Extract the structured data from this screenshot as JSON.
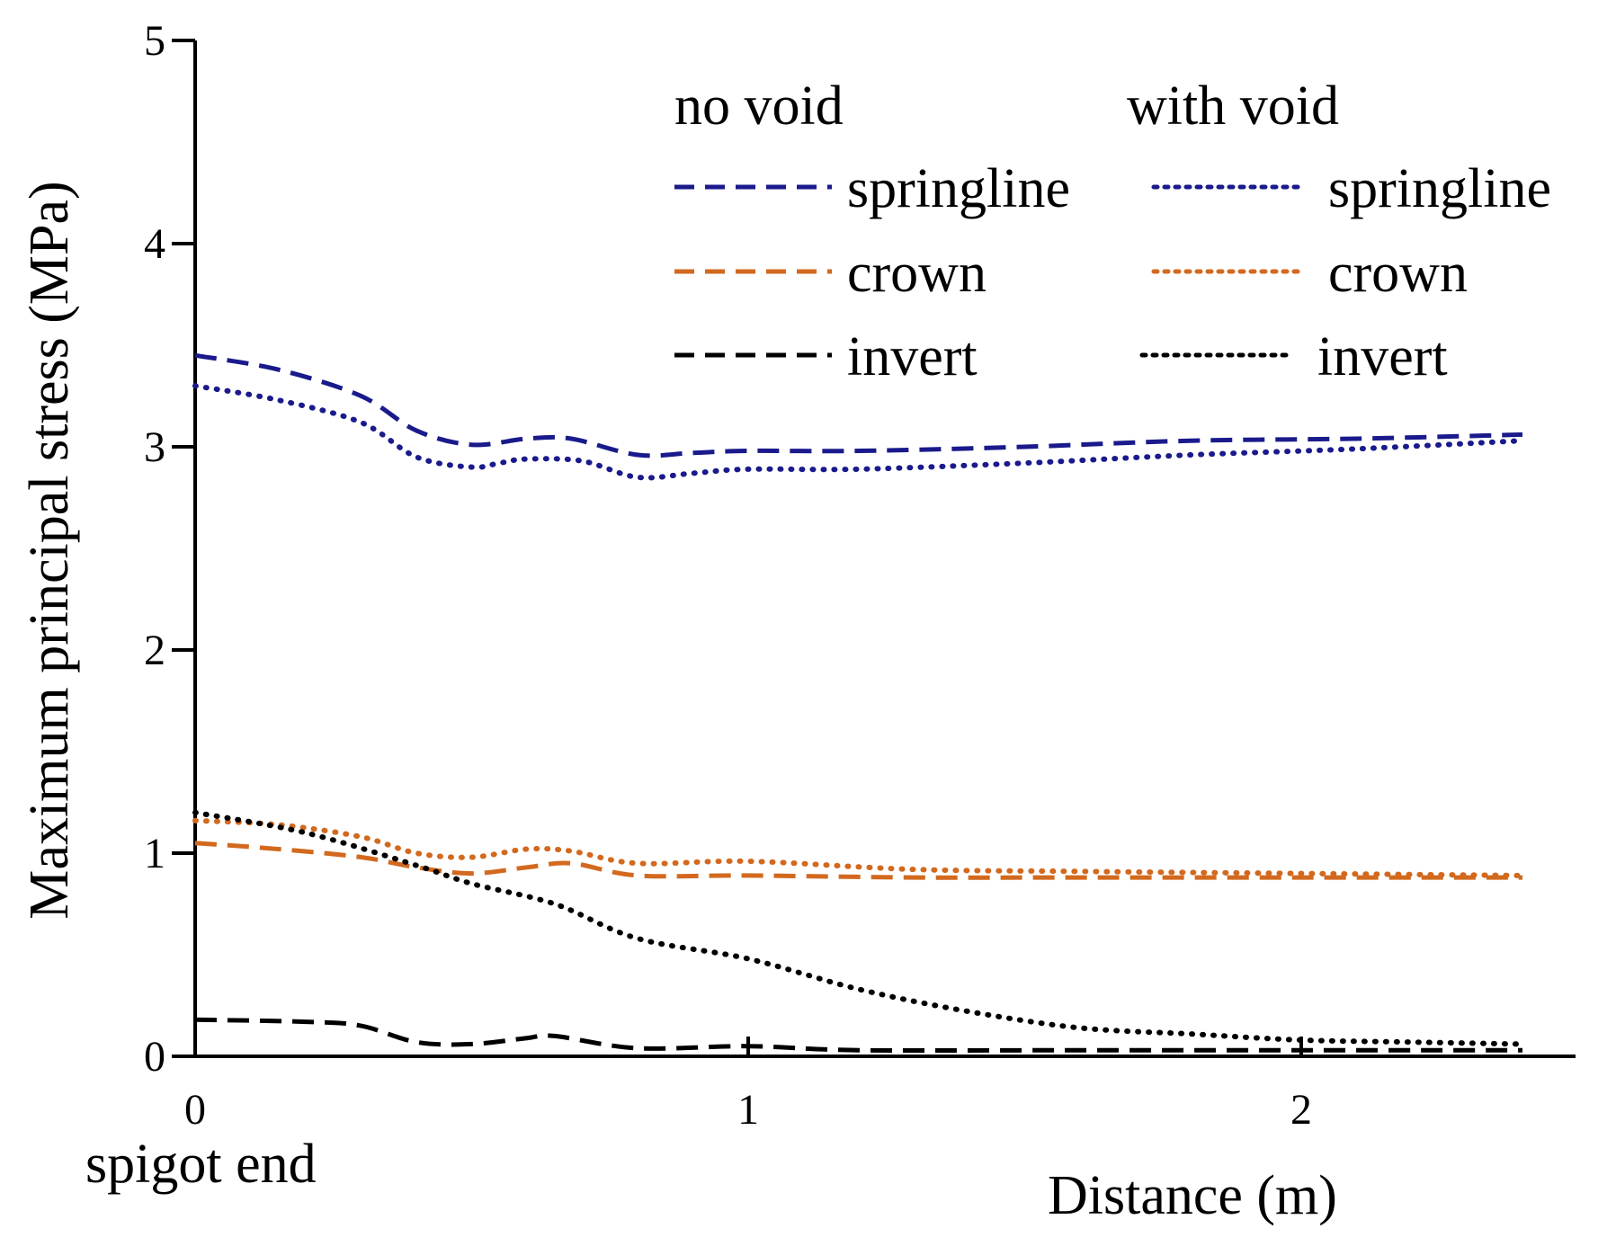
{
  "chart_data": {
    "type": "line",
    "xlabel": "Distance (m)",
    "ylabel": "Maximum principal stress (MPa)",
    "x_origin_label": "spigot end",
    "xlim": [
      0,
      2.5
    ],
    "ylim": [
      0,
      5
    ],
    "x_ticks": [
      0,
      1,
      2
    ],
    "y_ticks": [
      0,
      1,
      2,
      3,
      4,
      5
    ],
    "grid": false,
    "legend": {
      "placement": "top-right",
      "groups": [
        {
          "title": "no void",
          "line_style": "dashed"
        },
        {
          "title": "with void",
          "line_style": "dotted"
        }
      ]
    },
    "series": [
      {
        "name": "springline",
        "group": "no void",
        "style": "dashed",
        "color": "#1a1a8c",
        "x": [
          0,
          0.15,
          0.3,
          0.4,
          0.5,
          0.6,
          0.68,
          0.8,
          0.9,
          1.0,
          1.2,
          1.5,
          1.8,
          2.1,
          2.4
        ],
        "y": [
          3.45,
          3.38,
          3.25,
          3.08,
          3.01,
          3.04,
          3.04,
          2.96,
          2.97,
          2.98,
          2.98,
          3.0,
          3.03,
          3.04,
          3.06
        ]
      },
      {
        "name": "crown",
        "group": "no void",
        "style": "dashed",
        "color": "#d2691e",
        "x": [
          0,
          0.15,
          0.3,
          0.4,
          0.5,
          0.6,
          0.68,
          0.8,
          1.0,
          1.3,
          1.6,
          2.0,
          2.4
        ],
        "y": [
          1.05,
          1.02,
          0.98,
          0.93,
          0.9,
          0.93,
          0.95,
          0.89,
          0.89,
          0.88,
          0.88,
          0.88,
          0.88
        ]
      },
      {
        "name": "invert",
        "group": "no void",
        "style": "dashed",
        "color": "#000000",
        "x": [
          0,
          0.2,
          0.3,
          0.4,
          0.5,
          0.6,
          0.65,
          0.8,
          1.0,
          1.2,
          1.6,
          2.0,
          2.4
        ],
        "y": [
          0.18,
          0.17,
          0.15,
          0.07,
          0.06,
          0.09,
          0.1,
          0.04,
          0.05,
          0.03,
          0.03,
          0.03,
          0.03
        ]
      },
      {
        "name": "springline",
        "group": "with void",
        "style": "dotted",
        "color": "#1a1a8c",
        "x": [
          0,
          0.15,
          0.3,
          0.4,
          0.5,
          0.55,
          0.6,
          0.7,
          0.8,
          0.9,
          1.0,
          1.2,
          1.5,
          1.8,
          2.1,
          2.4
        ],
        "y": [
          3.3,
          3.23,
          3.12,
          2.95,
          2.9,
          2.92,
          2.94,
          2.93,
          2.85,
          2.87,
          2.89,
          2.89,
          2.92,
          2.96,
          2.99,
          3.03
        ]
      },
      {
        "name": "crown",
        "group": "with void",
        "style": "dotted",
        "color": "#d2691e",
        "x": [
          0,
          0.15,
          0.3,
          0.4,
          0.5,
          0.6,
          0.68,
          0.8,
          1.0,
          1.3,
          1.6,
          2.0,
          2.4
        ],
        "y": [
          1.16,
          1.14,
          1.08,
          1.0,
          0.98,
          1.02,
          1.01,
          0.95,
          0.96,
          0.92,
          0.91,
          0.9,
          0.89
        ]
      },
      {
        "name": "invert",
        "group": "with void",
        "style": "dotted",
        "color": "#000000",
        "x": [
          0,
          0.2,
          0.4,
          0.5,
          0.65,
          0.8,
          1.0,
          1.2,
          1.4,
          1.6,
          1.8,
          2.0,
          2.2,
          2.4
        ],
        "y": [
          1.2,
          1.1,
          0.94,
          0.85,
          0.75,
          0.58,
          0.48,
          0.33,
          0.22,
          0.14,
          0.11,
          0.08,
          0.07,
          0.06
        ]
      }
    ]
  }
}
